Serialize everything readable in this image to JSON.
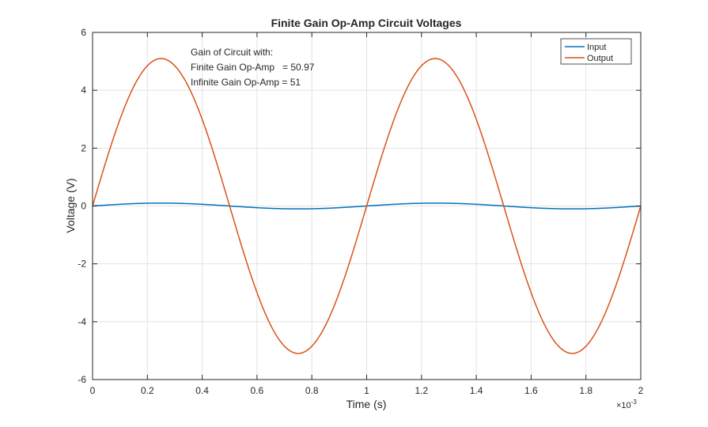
{
  "chart_data": {
    "type": "line",
    "title": "Finite Gain Op-Amp Circuit Voltages",
    "xlabel": "Time (s)",
    "ylabel": "Voltage (V)",
    "x_exponent_label": "×10",
    "x_exponent_power": "-3",
    "xlim": [
      0,
      2
    ],
    "ylim": [
      -6,
      6
    ],
    "xticks": [
      0,
      0.2,
      0.4,
      0.6,
      0.8,
      1,
      1.2,
      1.4,
      1.6,
      1.8,
      2
    ],
    "xtick_labels": [
      "0",
      "0.2",
      "0.4",
      "0.6",
      "0.8",
      "1",
      "1.2",
      "1.4",
      "1.6",
      "1.8",
      "2"
    ],
    "yticks": [
      -6,
      -4,
      -2,
      0,
      2,
      4,
      6
    ],
    "ytick_labels": [
      "-6",
      "-4",
      "-2",
      "0",
      "2",
      "4",
      "6"
    ],
    "grid": true,
    "legend_position": "top-right",
    "series": [
      {
        "name": "Input",
        "color": "#0072BD",
        "function": "sine",
        "amplitude": 0.1,
        "frequency_hz": 1000
      },
      {
        "name": "Output",
        "color": "#D95319",
        "function": "sine",
        "amplitude": 5.097,
        "frequency_hz": 1000
      }
    ],
    "annotation": {
      "lines": [
        "Gain of Circuit with:",
        "Finite Gain Op-Amp   = 50.97",
        "Infinite Gain Op-Amp = 51"
      ]
    }
  }
}
